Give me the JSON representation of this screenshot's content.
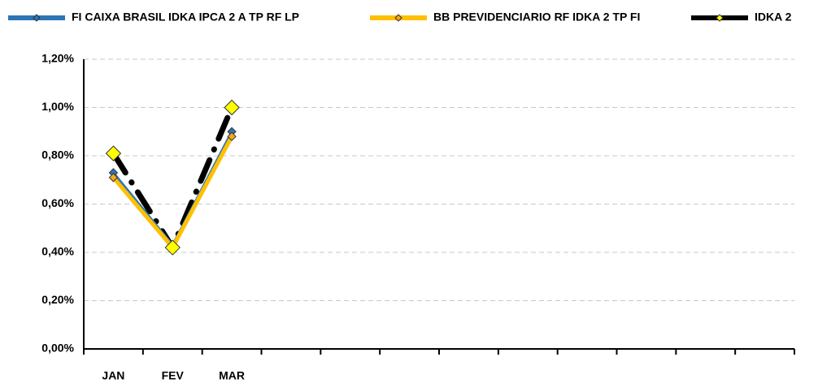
{
  "chart_data": {
    "type": "line",
    "categories": [
      "JAN",
      "FEV",
      "MAR",
      null,
      null,
      null,
      null,
      null,
      null,
      null,
      null,
      null
    ],
    "series": [
      {
        "name": "FI CAIXA BRASIL IDKA IPCA 2 A TP RF LP",
        "color": "#2e75b6",
        "marker_color": "#2e75b6",
        "values": [
          0.73,
          0.43,
          0.9,
          null,
          null,
          null,
          null,
          null,
          null,
          null,
          null,
          null
        ]
      },
      {
        "name": "BB PREVIDENCIARIO RF IDKA 2 TP FI",
        "color": "#ffc000",
        "marker_color": "#f4a81d",
        "values": [
          0.71,
          0.42,
          0.88,
          null,
          null,
          null,
          null,
          null,
          null,
          null,
          null,
          null
        ]
      },
      {
        "name": "IDKA 2",
        "color": "#000000",
        "marker_color": "#ffff00",
        "dashed": true,
        "values": [
          0.81,
          0.42,
          1.0,
          null,
          null,
          null,
          null,
          null,
          null,
          null,
          null,
          null
        ]
      }
    ],
    "ylim": [
      0,
      1.2
    ],
    "yticks": [
      {
        "value": 0,
        "label": "0,00%"
      },
      {
        "value": 0.2,
        "label": "0,20%"
      },
      {
        "value": 0.4,
        "label": "0,40%"
      },
      {
        "value": 0.6,
        "label": "0,60%"
      },
      {
        "value": 0.8,
        "label": "0,80%"
      },
      {
        "value": 1.0,
        "label": "1,00%"
      },
      {
        "value": 1.2,
        "label": "1,20%"
      }
    ],
    "grid": true,
    "legend": "top"
  }
}
